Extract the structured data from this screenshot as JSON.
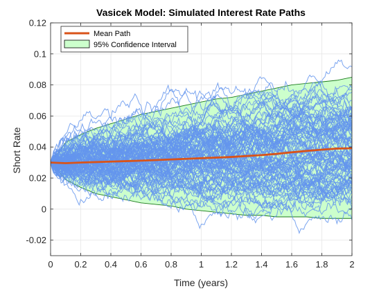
{
  "chart_data": {
    "type": "line",
    "title": "Vasicek Model: Simulated Interest Rate Paths",
    "xlabel": "Time (years)",
    "ylabel": "Short Rate",
    "xlim": [
      0,
      2
    ],
    "ylim": [
      -0.03,
      0.12
    ],
    "x_ticks": [
      0,
      0.2,
      0.4,
      0.6,
      0.8,
      1,
      1.2,
      1.4,
      1.6,
      1.8,
      2
    ],
    "x_tick_labels": [
      "0",
      "0.2",
      "0.4",
      "0.6",
      "0.8",
      "1",
      "1.2",
      "1.4",
      "1.6",
      "1.8",
      "2"
    ],
    "y_ticks": [
      -0.02,
      0,
      0.02,
      0.04,
      0.06,
      0.08,
      0.1,
      0.12
    ],
    "y_tick_labels": [
      "-0.02",
      "0",
      "0.02",
      "0.04",
      "0.06",
      "0.08",
      "0.1",
      "0.12"
    ],
    "grid": true,
    "legend_position": "top-left",
    "legend": [
      {
        "label": "Mean Path",
        "kind": "line",
        "color": "#d95319"
      },
      {
        "label": "95% Confidence Interval",
        "kind": "area",
        "color": "#ccffcc",
        "edge": "#000000"
      }
    ],
    "mean_path": {
      "name": "Mean Path",
      "color": "#d95319",
      "x": [
        0,
        0.1,
        0.2,
        0.3,
        0.4,
        0.5,
        0.6,
        0.7,
        0.8,
        0.9,
        1.0,
        1.1,
        1.2,
        1.3,
        1.4,
        1.5,
        1.6,
        1.7,
        1.8,
        1.9,
        2.0
      ],
      "y": [
        0.03,
        0.0296,
        0.03,
        0.0303,
        0.0306,
        0.0309,
        0.0312,
        0.0316,
        0.032,
        0.0324,
        0.0328,
        0.0332,
        0.0336,
        0.0342,
        0.0348,
        0.0356,
        0.0366,
        0.0375,
        0.0383,
        0.039,
        0.0392
      ]
    },
    "confidence_band": {
      "name": "95% Confidence Interval",
      "fill": "#ccffcc",
      "edge": "#1a7a1a",
      "x": [
        0,
        0.1,
        0.2,
        0.3,
        0.4,
        0.5,
        0.6,
        0.7,
        0.8,
        0.9,
        1.0,
        1.1,
        1.2,
        1.3,
        1.4,
        1.5,
        1.6,
        1.7,
        1.8,
        1.9,
        2.0
      ],
      "upper": [
        0.03,
        0.043,
        0.048,
        0.052,
        0.055,
        0.058,
        0.061,
        0.063,
        0.065,
        0.067,
        0.069,
        0.071,
        0.072,
        0.074,
        0.076,
        0.078,
        0.08,
        0.081,
        0.082,
        0.083,
        0.085
      ],
      "lower": [
        0.03,
        0.019,
        0.014,
        0.01,
        0.008,
        0.006,
        0.004,
        0.003,
        0.002,
        0.0,
        -0.001,
        -0.002,
        -0.003,
        -0.004,
        -0.004,
        -0.005,
        -0.005,
        -0.005,
        -0.006,
        -0.006,
        -0.006
      ]
    },
    "simulated_paths": {
      "count": 100,
      "color": "#6495ed",
      "start_value": 0.03,
      "mean_level": 0.04,
      "speed": 0.5,
      "volatility": 0.02,
      "steps": 200,
      "seed": 7
    }
  }
}
